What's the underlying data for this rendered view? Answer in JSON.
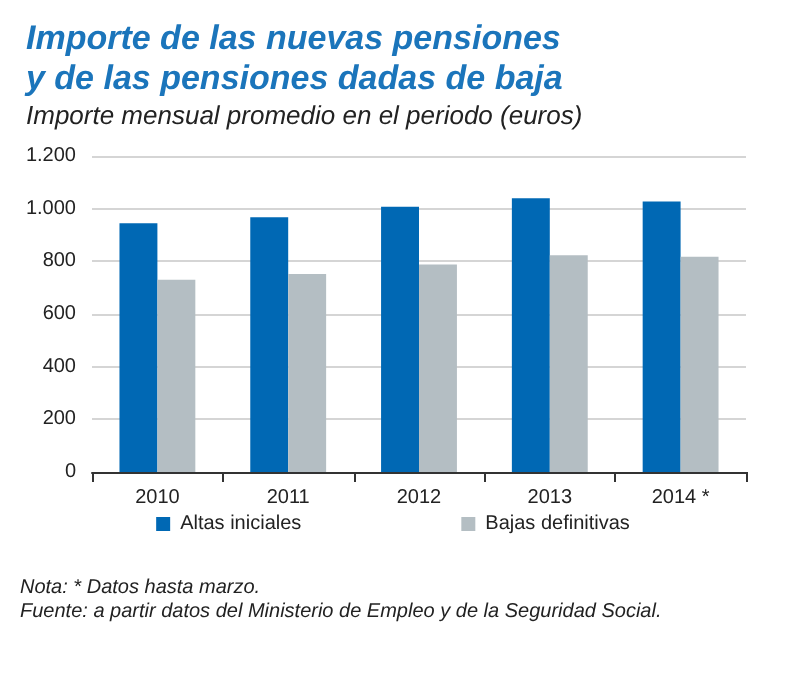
{
  "chart_data": {
    "type": "bar",
    "title": "Importe de las nuevas pensiones\ny de las pensiones dadas de baja",
    "subtitle": "Importe mensual promedio en el periodo (euros)",
    "categories": [
      "2010",
      "2011",
      "2012",
      "2013",
      "2014 *"
    ],
    "series": [
      {
        "name": "Altas iniciales",
        "color": "#0068b4",
        "values": [
          945,
          967,
          1007,
          1040,
          1027
        ]
      },
      {
        "name": "Bajas definitivas",
        "color": "#b4bec3",
        "values": [
          730,
          752,
          788,
          823,
          817
        ]
      }
    ],
    "ylim": [
      0,
      1200
    ],
    "yticks": [
      0,
      200,
      400,
      600,
      800,
      {
        "value": 1000,
        "label": "1.000"
      },
      {
        "value": 1200,
        "label": "1.200"
      }
    ],
    "grid": "y",
    "legend": "bottom",
    "annotations": [
      "Nota: * Datos hasta marzo.",
      "Fuente: a partir datos del Ministerio de Empleo y de la Seguridad Social."
    ]
  }
}
